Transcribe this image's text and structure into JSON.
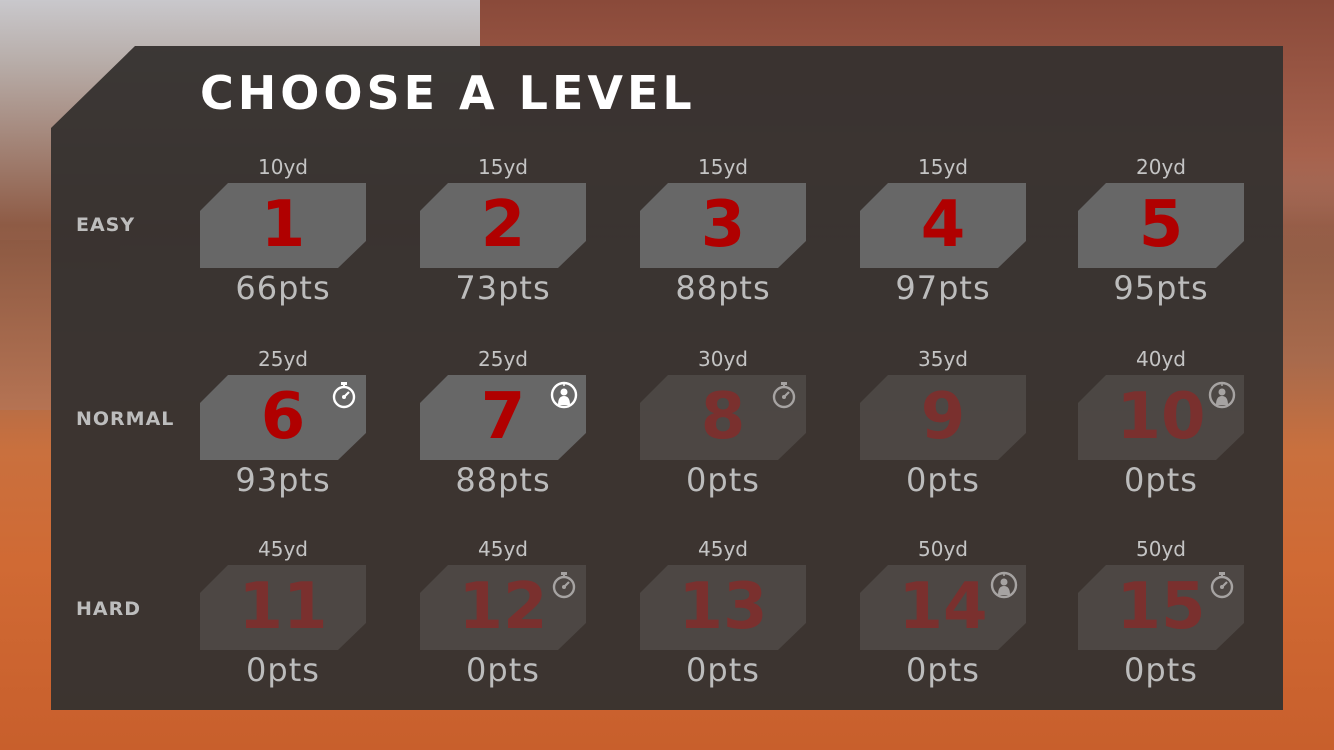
{
  "title": "CHOOSE A LEVEL",
  "rows": [
    {
      "label": "EASY",
      "levels": [
        {
          "number": "1",
          "distance": "10yd",
          "points": "66pts",
          "locked": false,
          "icon": ""
        },
        {
          "number": "2",
          "distance": "15yd",
          "points": "73pts",
          "locked": false,
          "icon": ""
        },
        {
          "number": "3",
          "distance": "15yd",
          "points": "88pts",
          "locked": false,
          "icon": ""
        },
        {
          "number": "4",
          "distance": "15yd",
          "points": "97pts",
          "locked": false,
          "icon": ""
        },
        {
          "number": "5",
          "distance": "20yd",
          "points": "95pts",
          "locked": false,
          "icon": ""
        }
      ]
    },
    {
      "label": "NORMAL",
      "levels": [
        {
          "number": "6",
          "distance": "25yd",
          "points": "93pts",
          "locked": false,
          "icon": "stopwatch-icon"
        },
        {
          "number": "7",
          "distance": "25yd",
          "points": "88pts",
          "locked": false,
          "icon": "target-person-icon"
        },
        {
          "number": "8",
          "distance": "30yd",
          "points": "0pts",
          "locked": true,
          "icon": "stopwatch-icon"
        },
        {
          "number": "9",
          "distance": "35yd",
          "points": "0pts",
          "locked": true,
          "icon": ""
        },
        {
          "number": "10",
          "distance": "40yd",
          "points": "0pts",
          "locked": true,
          "icon": "target-person-icon"
        }
      ]
    },
    {
      "label": "HARD",
      "levels": [
        {
          "number": "11",
          "distance": "45yd",
          "points": "0pts",
          "locked": true,
          "icon": ""
        },
        {
          "number": "12",
          "distance": "45yd",
          "points": "0pts",
          "locked": true,
          "icon": "stopwatch-icon"
        },
        {
          "number": "13",
          "distance": "45yd",
          "points": "0pts",
          "locked": true,
          "icon": ""
        },
        {
          "number": "14",
          "distance": "50yd",
          "points": "0pts",
          "locked": true,
          "icon": "target-person-icon"
        },
        {
          "number": "15",
          "distance": "50yd",
          "points": "0pts",
          "locked": true,
          "icon": "stopwatch-icon"
        }
      ]
    }
  ],
  "colors": {
    "accent": "#b00000",
    "tile": "#676767",
    "panel": "#363230"
  }
}
